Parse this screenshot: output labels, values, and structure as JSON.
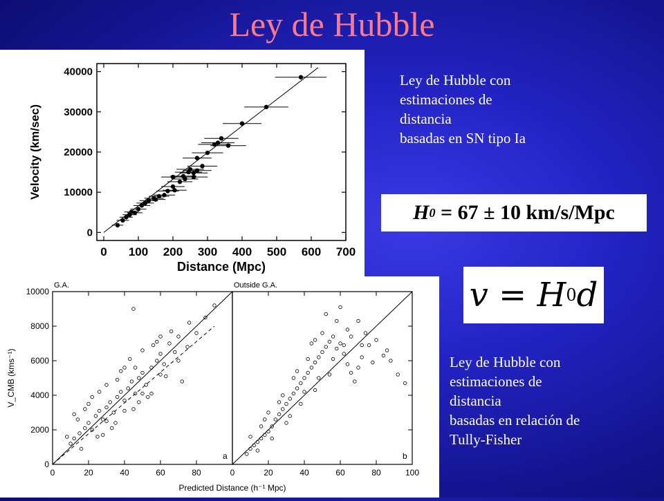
{
  "slide": {
    "title": "Ley de Hubble",
    "desc_top": [
      "Ley de Hubble con",
      "estimaciones de",
      "distancia",
      "basadas en SN tipo Ia"
    ],
    "desc_bottom": [
      "Ley de Hubble con",
      "estimaciones de",
      "distancia",
      "basadas en relación de",
      "Tully-Fisher"
    ],
    "h0_symbol": "H",
    "h0_subscript": "0",
    "h0_value": "= 67 ± 10 km/s/Mpc",
    "formula": {
      "v": "v",
      "eq": "=",
      "H": "H",
      "sub": "0",
      "d": "d"
    },
    "colors": {
      "title": "#ff7a86",
      "background": "#2323c4",
      "text": "#ffffff"
    }
  },
  "chart_data": [
    {
      "type": "scatter",
      "xlabel": "Distance (Mpc)",
      "ylabel": "Velocity (km/sec)",
      "xticks": [
        "0",
        "100",
        "200",
        "300",
        "400",
        "500",
        "600",
        "700"
      ],
      "yticks": [
        "0",
        "10000",
        "20000",
        "30000",
        "40000"
      ],
      "xlim": [
        -20,
        700
      ],
      "ylim": [
        -2000,
        42000
      ],
      "series": [
        {
          "values": [
            [
              40,
              1800
            ],
            [
              55,
              3000
            ],
            [
              65,
              3800
            ],
            [
              75,
              4400
            ],
            [
              80,
              5100
            ],
            [
              90,
              4900
            ],
            [
              100,
              5800
            ],
            [
              110,
              6700
            ],
            [
              120,
              7300
            ],
            [
              130,
              7900
            ],
            [
              145,
              8500
            ],
            [
              150,
              8200
            ],
            [
              160,
              9000
            ],
            [
              175,
              9300
            ],
            [
              185,
              10300
            ],
            [
              200,
              11400
            ],
            [
              205,
              10500
            ],
            [
              220,
              12600
            ],
            [
              235,
              13300
            ],
            [
              245,
              15000
            ],
            [
              250,
              15700
            ],
            [
              260,
              14800
            ],
            [
              270,
              15400
            ],
            [
              285,
              16500
            ],
            [
              270,
              18500
            ],
            [
              300,
              19800
            ],
            [
              330,
              22300
            ],
            [
              320,
              21900
            ],
            [
              340,
              23400
            ],
            [
              360,
              21600
            ],
            [
              400,
              27100
            ],
            [
              470,
              31200
            ],
            [
              570,
              38600
            ],
            [
              200,
              13800
            ],
            [
              230,
              14000
            ],
            [
              260,
              13800
            ]
          ]
        }
      ],
      "fit_line": [
        [
          0,
          0
        ],
        [
          620,
          41000
        ]
      ]
    },
    {
      "type": "scatter",
      "panels": [
        "G.A.",
        "Outside G.A."
      ],
      "panel_letters": [
        "a",
        "b"
      ],
      "xlabel": "Predicted Distance (h⁻¹ Mpc)",
      "ylabel": "V_CMB (kms⁻¹)",
      "left_xticks": [
        "0",
        "20",
        "40",
        "60",
        "80"
      ],
      "right_xticks": [
        "0",
        "20",
        "40",
        "60",
        "80",
        "100"
      ],
      "yticks": [
        "0",
        "2000",
        "4000",
        "6000",
        "8000",
        "10000"
      ],
      "xlim": [
        0,
        100
      ],
      "ylim": [
        0,
        10000
      ],
      "series": [
        {
          "name": "G.A.",
          "values": [
            [
              10,
              1200
            ],
            [
              12,
              1500
            ],
            [
              15,
              1800
            ],
            [
              18,
              2100
            ],
            [
              20,
              2400
            ],
            [
              22,
              2000
            ],
            [
              24,
              2800
            ],
            [
              26,
              3100
            ],
            [
              28,
              2600
            ],
            [
              30,
              3300
            ],
            [
              32,
              3600
            ],
            [
              34,
              3000
            ],
            [
              36,
              3900
            ],
            [
              38,
              4200
            ],
            [
              40,
              3700
            ],
            [
              42,
              4400
            ],
            [
              44,
              4800
            ],
            [
              46,
              4100
            ],
            [
              48,
              5000
            ],
            [
              50,
              5300
            ],
            [
              52,
              4600
            ],
            [
              55,
              5600
            ],
            [
              58,
              6000
            ],
            [
              60,
              6400
            ],
            [
              62,
              5800
            ],
            [
              65,
              7000
            ],
            [
              68,
              6500
            ],
            [
              70,
              7400
            ],
            [
              75,
              6800
            ],
            [
              80,
              7600
            ],
            [
              85,
              8500
            ],
            [
              90,
              9200
            ],
            [
              20,
              3500
            ],
            [
              25,
              1600
            ],
            [
              30,
              4600
            ],
            [
              35,
              2400
            ],
            [
              40,
              5600
            ],
            [
              45,
              3200
            ],
            [
              50,
              6600
            ],
            [
              55,
              4100
            ],
            [
              60,
              7400
            ],
            [
              18,
              3200
            ],
            [
              28,
              1700
            ],
            [
              38,
              5400
            ],
            [
              48,
              3600
            ],
            [
              58,
              7100
            ],
            [
              14,
              2600
            ],
            [
              33,
              2100
            ],
            [
              43,
              6100
            ],
            [
              53,
              3900
            ],
            [
              63,
              5100
            ],
            [
              72,
              4800
            ],
            [
              45,
              9000
            ],
            [
              22,
              3900
            ],
            [
              16,
              900
            ],
            [
              8,
              1600
            ],
            [
              12,
              2900
            ],
            [
              26,
              4200
            ],
            [
              36,
              4900
            ],
            [
              46,
              5600
            ],
            [
              56,
              6900
            ],
            [
              66,
              7700
            ],
            [
              76,
              8200
            ],
            [
              30,
              2500
            ],
            [
              40,
              3100
            ],
            [
              50,
              4100
            ],
            [
              60,
              5200
            ],
            [
              70,
              6000
            ]
          ]
        },
        {
          "name": "Outside G.A.",
          "values": [
            [
              8,
              600
            ],
            [
              10,
              900
            ],
            [
              12,
              1100
            ],
            [
              14,
              1300
            ],
            [
              16,
              1500
            ],
            [
              18,
              1700
            ],
            [
              20,
              1900
            ],
            [
              22,
              2200
            ],
            [
              24,
              2600
            ],
            [
              26,
              2900
            ],
            [
              28,
              3200
            ],
            [
              30,
              3500
            ],
            [
              32,
              3800
            ],
            [
              34,
              4100
            ],
            [
              36,
              4400
            ],
            [
              38,
              4700
            ],
            [
              40,
              5000
            ],
            [
              42,
              5300
            ],
            [
              44,
              5600
            ],
            [
              46,
              5900
            ],
            [
              48,
              6200
            ],
            [
              50,
              6500
            ],
            [
              52,
              6800
            ],
            [
              54,
              7100
            ],
            [
              56,
              7400
            ],
            [
              58,
              6700
            ],
            [
              60,
              7000
            ],
            [
              62,
              6400
            ],
            [
              64,
              5800
            ],
            [
              66,
              5300
            ],
            [
              68,
              4800
            ],
            [
              70,
              5600
            ],
            [
              72,
              6200
            ],
            [
              74,
              7600
            ],
            [
              76,
              6900
            ],
            [
              80,
              7200
            ],
            [
              84,
              6300
            ],
            [
              88,
              6000
            ],
            [
              92,
              5200
            ],
            [
              96,
              4700
            ],
            [
              18,
              2600
            ],
            [
              22,
              1500
            ],
            [
              26,
              3600
            ],
            [
              30,
              2400
            ],
            [
              34,
              5000
            ],
            [
              38,
              3500
            ],
            [
              42,
              6100
            ],
            [
              46,
              4300
            ],
            [
              50,
              7600
            ],
            [
              54,
              5200
            ],
            [
              58,
              8300
            ],
            [
              62,
              6900
            ],
            [
              14,
              800
            ],
            [
              16,
              2200
            ],
            [
              36,
              5400
            ],
            [
              40,
              4200
            ],
            [
              44,
              7000
            ],
            [
              48,
              5000
            ],
            [
              52,
              8700
            ],
            [
              56,
              6100
            ],
            [
              60,
              9100
            ],
            [
              66,
              7400
            ],
            [
              70,
              8300
            ],
            [
              10,
              1600
            ],
            [
              20,
              3000
            ],
            [
              28,
              4000
            ],
            [
              32,
              2800
            ],
            [
              46,
              7200
            ],
            [
              64,
              7800
            ],
            [
              72,
              6900
            ],
            [
              78,
              5900
            ],
            [
              86,
              6600
            ]
          ]
        }
      ],
      "fit_line": [
        [
          0,
          0
        ],
        [
          100,
          10000
        ]
      ]
    }
  ]
}
